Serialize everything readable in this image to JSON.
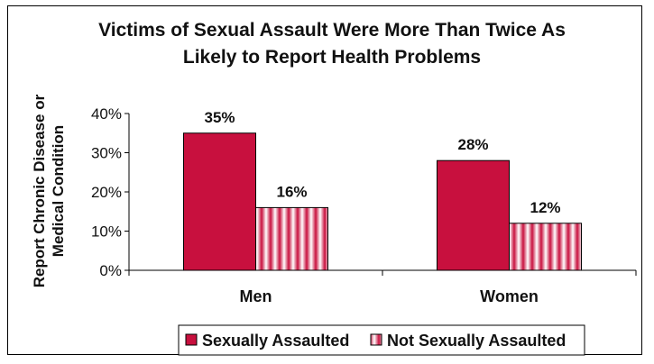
{
  "chart_data": {
    "type": "bar",
    "title_lines": [
      "Victims of Sexual Assault Were More Than Twice As",
      "Likely to Report Health Problems"
    ],
    "ylabel_lines": [
      "Report Chronic Disease or",
      "Medical Condition"
    ],
    "xlabel": "",
    "categories": [
      "Men",
      "Women"
    ],
    "series": [
      {
        "name": "Sexually Assaulted",
        "values": [
          35,
          28
        ],
        "labels": [
          "35%",
          "28%"
        ],
        "color": "#c8103e"
      },
      {
        "name": "Not Sexually Assaulted",
        "values": [
          16,
          12
        ],
        "labels": [
          "16%",
          "12%"
        ],
        "color": "#c8103e",
        "pattern": "vertical-stripes"
      }
    ],
    "ylim": [
      0,
      40
    ],
    "yticks": [
      0,
      10,
      20,
      30,
      40
    ],
    "ytick_labels": [
      "0%",
      "10%",
      "20%",
      "30%",
      "40%"
    ],
    "grid": false,
    "legend_position": "bottom"
  }
}
